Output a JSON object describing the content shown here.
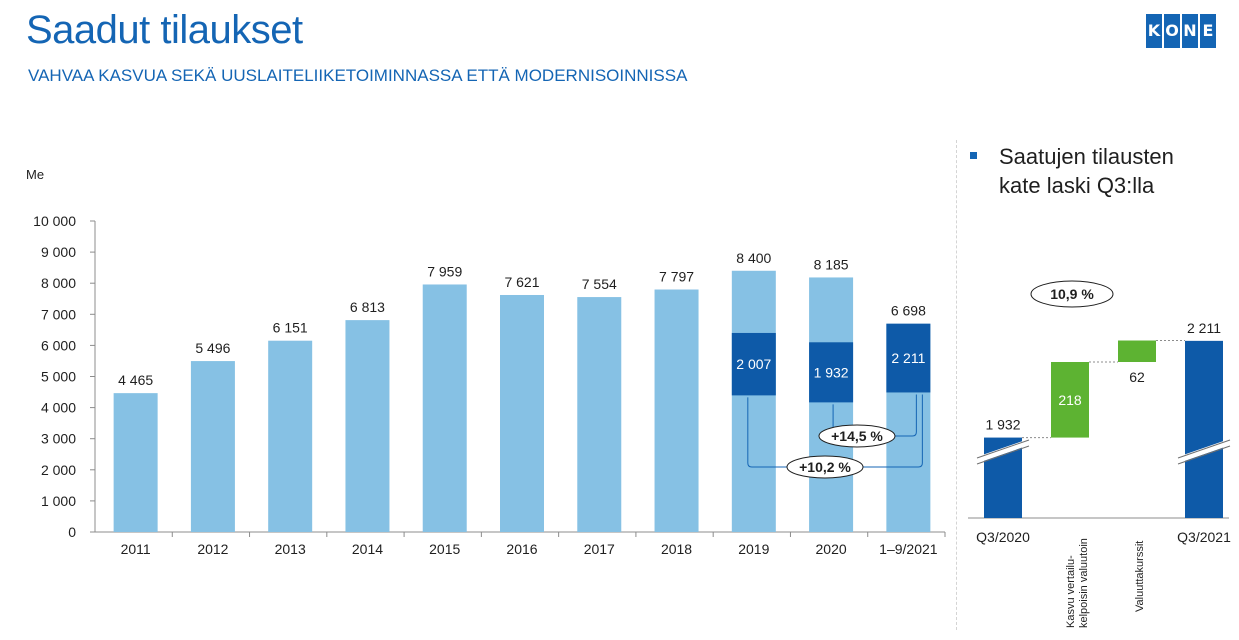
{
  "header": {
    "title": "Saadut tilaukset",
    "subtitle": "VAHVAA KASVUA SEKÄ UUSLAITELIIKETOIMINNASSA ETTÄ MODERNISOINNISSA",
    "logo_letters": [
      "K",
      "O",
      "N",
      "E"
    ]
  },
  "colors": {
    "brand": "#1465b4",
    "light_bar": "#86c1e4",
    "dark_bar": "#0e5aa8",
    "green": "#5db332"
  },
  "bullet": {
    "text": "Saatujen tilausten kate laski Q3:lla"
  },
  "chart_data": [
    {
      "type": "bar",
      "title": "",
      "ylabel": "Me",
      "xlabel": "",
      "ylim": [
        0,
        10000
      ],
      "yticks": [
        "0",
        "1 000",
        "2 000",
        "3 000",
        "4 000",
        "5 000",
        "6 000",
        "7 000",
        "8 000",
        "9 000",
        "10 000"
      ],
      "categories": [
        "2011",
        "2012",
        "2013",
        "2014",
        "2015",
        "2016",
        "2017",
        "2018",
        "2019",
        "2020",
        "1–9/2021"
      ],
      "values": [
        4465,
        5496,
        6151,
        6813,
        7959,
        7621,
        7554,
        7797,
        8400,
        8185,
        6698
      ],
      "value_labels": [
        "4 465",
        "5 496",
        "6 151",
        "6 813",
        "7 959",
        "7 621",
        "7 554",
        "7 797",
        "8 400",
        "8 185",
        "6 698"
      ],
      "q3_segments": [
        {
          "category": "2019",
          "value": 2007,
          "label": "2 007",
          "top": 6400
        },
        {
          "category": "2020",
          "value": 1932,
          "label": "1 932",
          "top": 6100
        },
        {
          "category": "1–9/2021",
          "value": 2211,
          "label": "2 211",
          "top": 6698
        }
      ],
      "growth_annotations": [
        {
          "label": "+14,5 %",
          "from": "2020",
          "to": "1–9/2021"
        },
        {
          "label": "+10,2 %",
          "from": "2019",
          "to": "1–9/2021"
        }
      ],
      "grid": false
    },
    {
      "type": "bar",
      "subtype": "waterfall",
      "categories": [
        "Q3/2020",
        "Kasvu vertailukelpoisin valuutoin",
        "Valuuttakurssit",
        "Q3/2021"
      ],
      "values": [
        1932,
        218,
        62,
        2211
      ],
      "value_labels": [
        "1 932",
        "218",
        "62",
        "2 211"
      ],
      "annotation": "10,9 %"
    }
  ]
}
